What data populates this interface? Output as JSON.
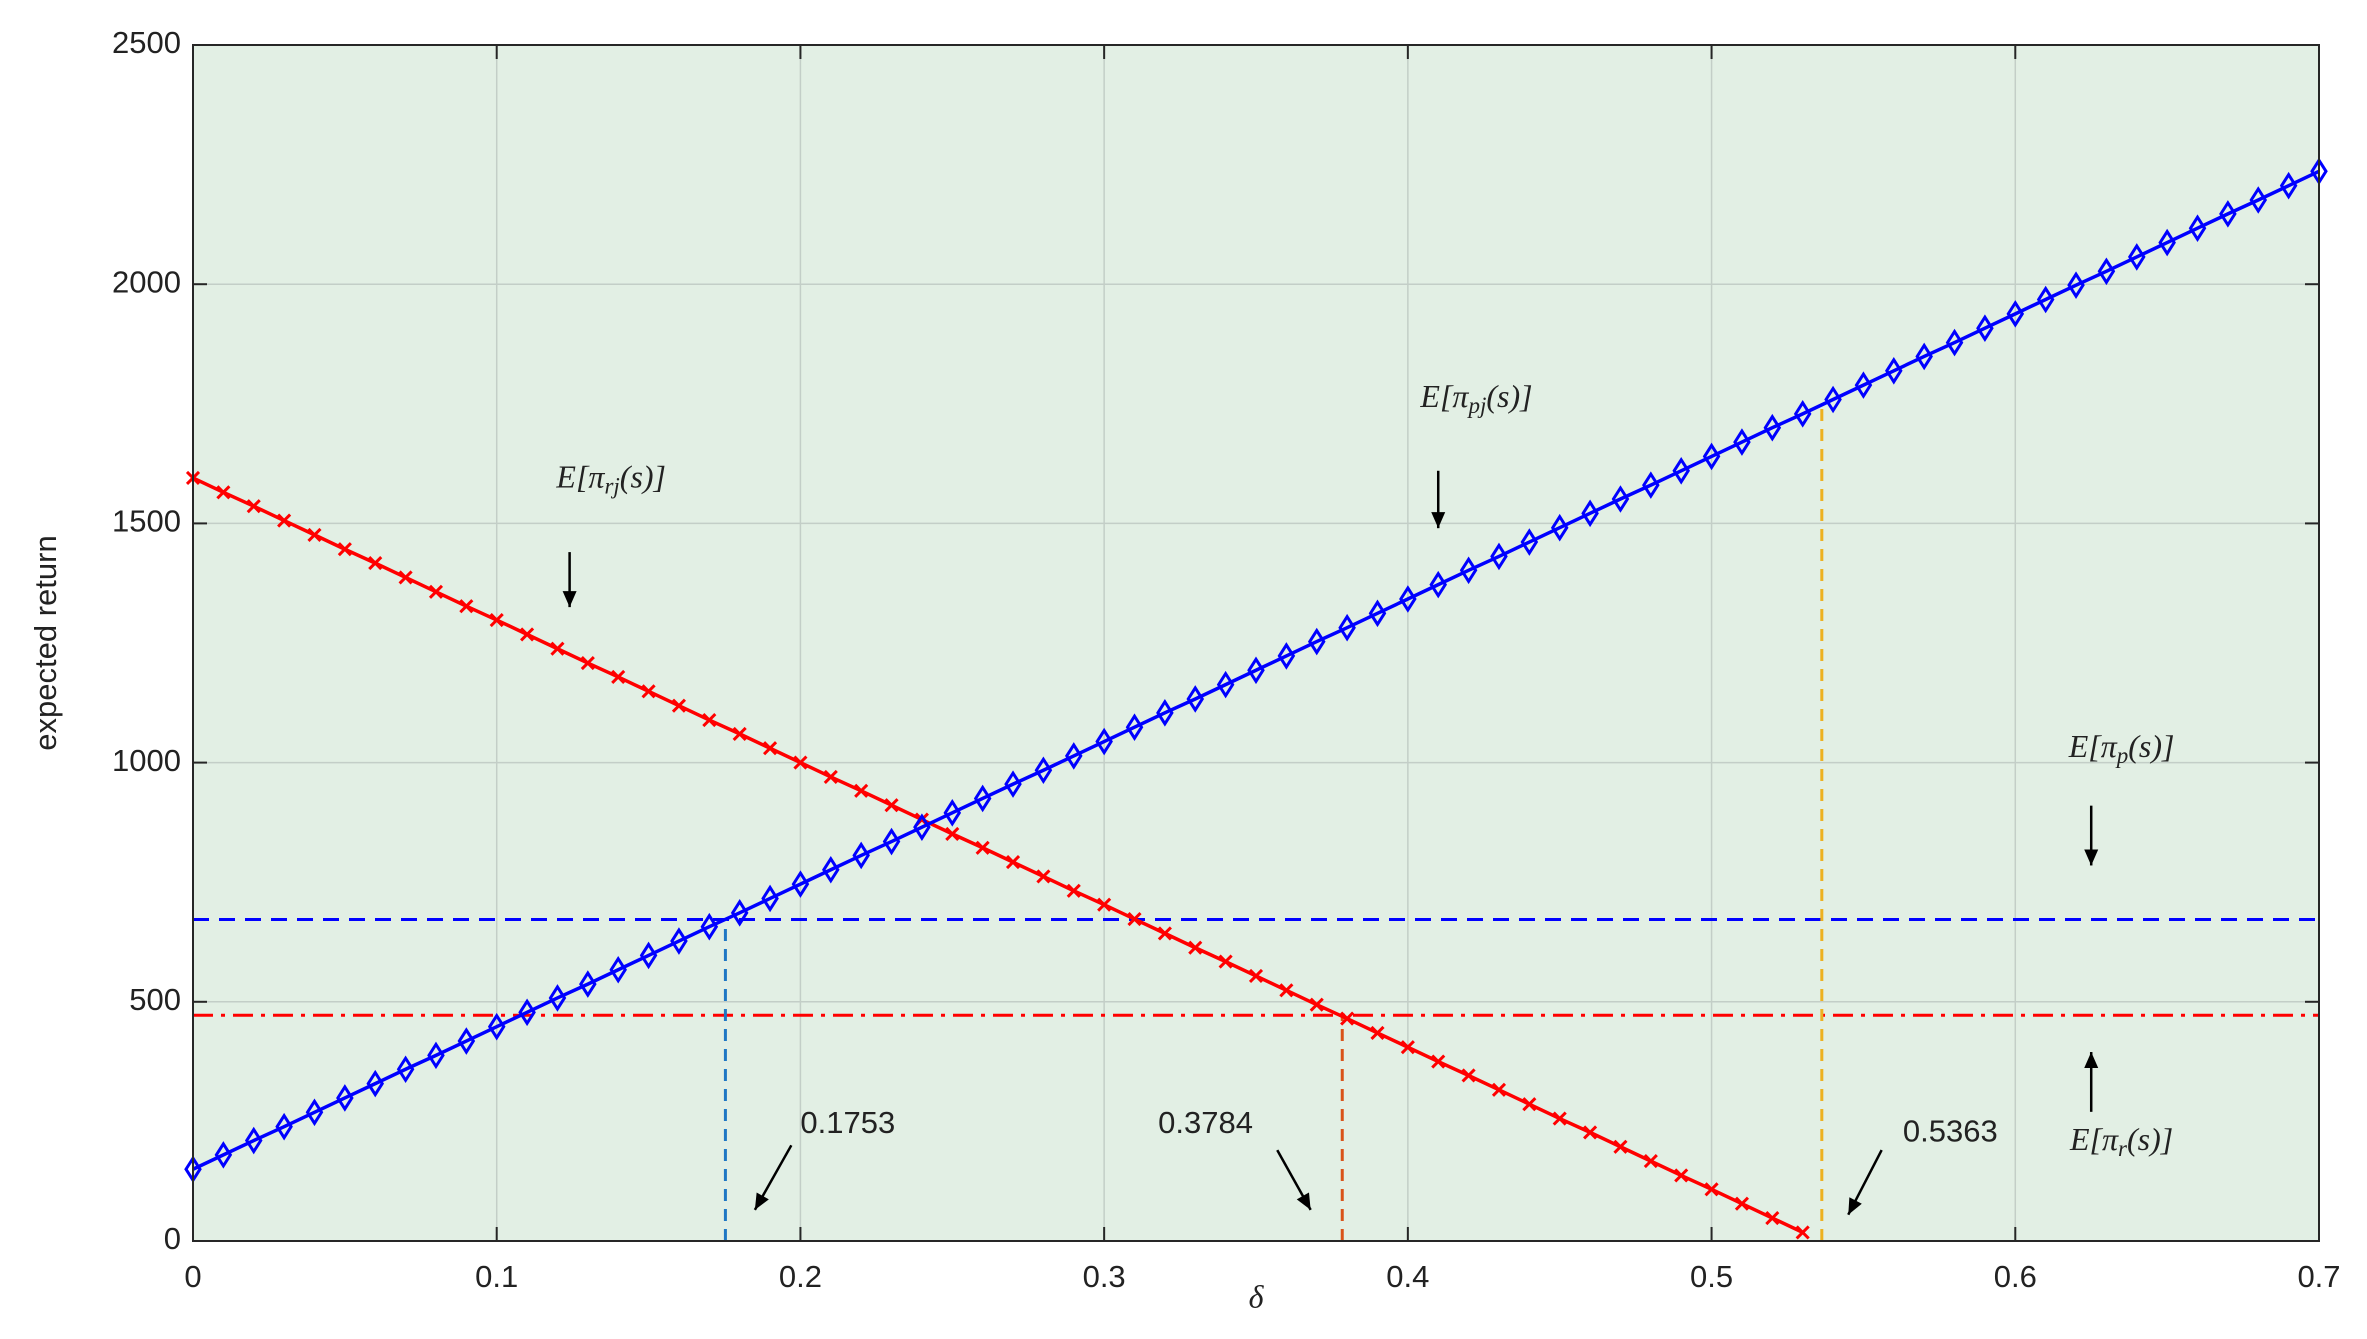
{
  "chart_data": {
    "type": "line",
    "xlabel": "δ",
    "ylabel": "expected return",
    "xlim": [
      0,
      0.7
    ],
    "xticks": [
      0,
      0.1,
      0.2,
      0.3,
      0.4,
      0.5,
      0.6,
      0.7
    ],
    "ylim": [
      0,
      2500
    ],
    "yticks": [
      0,
      500,
      1000,
      1500,
      2000,
      2500
    ],
    "grid": true,
    "background": "#e2efe4",
    "series": [
      {
        "color": "#ff0000",
        "marker": "x",
        "x": [
          0,
          0.01,
          0.02,
          0.03,
          0.04,
          0.05,
          0.06,
          0.07,
          0.08,
          0.09,
          0.1,
          0.11,
          0.12,
          0.13,
          0.14,
          0.15,
          0.16,
          0.17,
          0.18,
          0.19,
          0.2,
          0.21,
          0.22,
          0.23,
          0.24,
          0.25,
          0.26,
          0.27,
          0.28,
          0.29,
          0.3,
          0.31,
          0.32,
          0.33,
          0.34,
          0.35,
          0.36,
          0.37,
          0.38,
          0.39,
          0.4,
          0.41,
          0.42,
          0.43,
          0.44,
          0.45,
          0.46,
          0.47,
          0.48,
          0.49,
          0.5,
          0.51,
          0.52,
          0.53
        ],
        "values": [
          1595,
          1565,
          1536,
          1506,
          1476,
          1446,
          1417,
          1387,
          1357,
          1327,
          1298,
          1268,
          1238,
          1208,
          1179,
          1149,
          1119,
          1089,
          1060,
          1030,
          1000,
          970,
          941,
          911,
          881,
          851,
          822,
          792,
          762,
          732,
          703,
          673,
          643,
          613,
          584,
          554,
          524,
          494,
          465,
          435,
          405,
          375,
          346,
          316,
          286,
          256,
          227,
          197,
          167,
          137,
          108,
          78,
          48,
          18
        ]
      },
      {
        "color": "#0000ff",
        "marker": "diamond",
        "x": [
          0,
          0.01,
          0.02,
          0.03,
          0.04,
          0.05,
          0.06,
          0.07,
          0.08,
          0.09,
          0.1,
          0.11,
          0.12,
          0.13,
          0.14,
          0.15,
          0.16,
          0.17,
          0.18,
          0.19,
          0.2,
          0.21,
          0.22,
          0.23,
          0.24,
          0.25,
          0.26,
          0.27,
          0.28,
          0.29,
          0.3,
          0.31,
          0.32,
          0.33,
          0.34,
          0.35,
          0.36,
          0.37,
          0.38,
          0.39,
          0.4,
          0.41,
          0.42,
          0.43,
          0.44,
          0.45,
          0.46,
          0.47,
          0.48,
          0.49,
          0.5,
          0.51,
          0.52,
          0.53,
          0.54,
          0.55,
          0.56,
          0.57,
          0.58,
          0.59,
          0.6,
          0.61,
          0.62,
          0.63,
          0.64,
          0.65,
          0.66,
          0.67,
          0.68,
          0.69,
          0.7
        ],
        "values": [
          150,
          180,
          210,
          239,
          269,
          299,
          329,
          359,
          388,
          418,
          448,
          478,
          508,
          537,
          567,
          597,
          627,
          657,
          686,
          716,
          746,
          776,
          806,
          835,
          865,
          895,
          925,
          955,
          984,
          1014,
          1044,
          1074,
          1104,
          1133,
          1163,
          1193,
          1223,
          1253,
          1282,
          1312,
          1342,
          1372,
          1402,
          1431,
          1461,
          1491,
          1521,
          1551,
          1580,
          1610,
          1640,
          1670,
          1700,
          1729,
          1759,
          1789,
          1819,
          1849,
          1878,
          1908,
          1938,
          1968,
          1998,
          2027,
          2057,
          2087,
          2117,
          2147,
          2176,
          2206,
          2236
        ]
      }
    ],
    "hlines": [
      {
        "y": 672,
        "color": "#0000ff",
        "style": "dashed"
      },
      {
        "y": 472,
        "color": "#ff0000",
        "style": "dashdot"
      }
    ],
    "vlines": [
      {
        "x": 0.1753,
        "y_end": 672,
        "color": "#1f77c4"
      },
      {
        "x": 0.3784,
        "y_end": 472,
        "color": "#d95319"
      },
      {
        "x": 0.5363,
        "y_end": 1748,
        "color": "#edb120"
      }
    ],
    "annotations": [
      {
        "base": "E[π",
        "sub": "rj",
        "end": "(s)]"
      },
      {
        "base": "E[π",
        "sub": "pj",
        "end": "(s)]"
      },
      {
        "base": "E[π",
        "sub": "p",
        "end": "(s)]"
      },
      {
        "base": "E[π",
        "sub": "r",
        "end": "(s)]"
      }
    ]
  }
}
